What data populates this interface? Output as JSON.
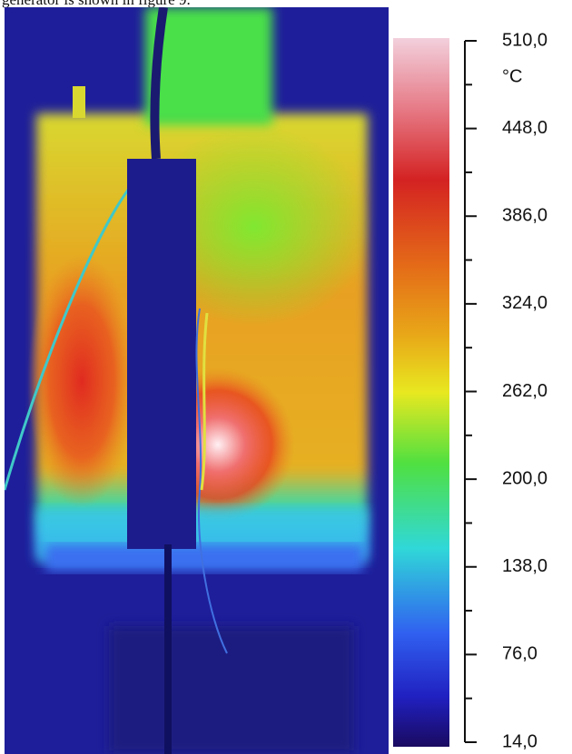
{
  "caption": "generator is shown in figure 9.",
  "colorbar": {
    "unit": "°C",
    "lim": [
      14,
      510
    ],
    "ticks": [
      {
        "value": 510,
        "label": "510,0"
      },
      {
        "value": 448,
        "label": "448,0"
      },
      {
        "value": 386,
        "label": "386,0"
      },
      {
        "value": 324,
        "label": "324,0"
      },
      {
        "value": 262,
        "label": "262,0"
      },
      {
        "value": 200,
        "label": "200,0"
      },
      {
        "value": 138,
        "label": "138,0"
      },
      {
        "value": 76,
        "label": "76,0"
      },
      {
        "value": 14,
        "label": "14,0"
      }
    ]
  }
}
